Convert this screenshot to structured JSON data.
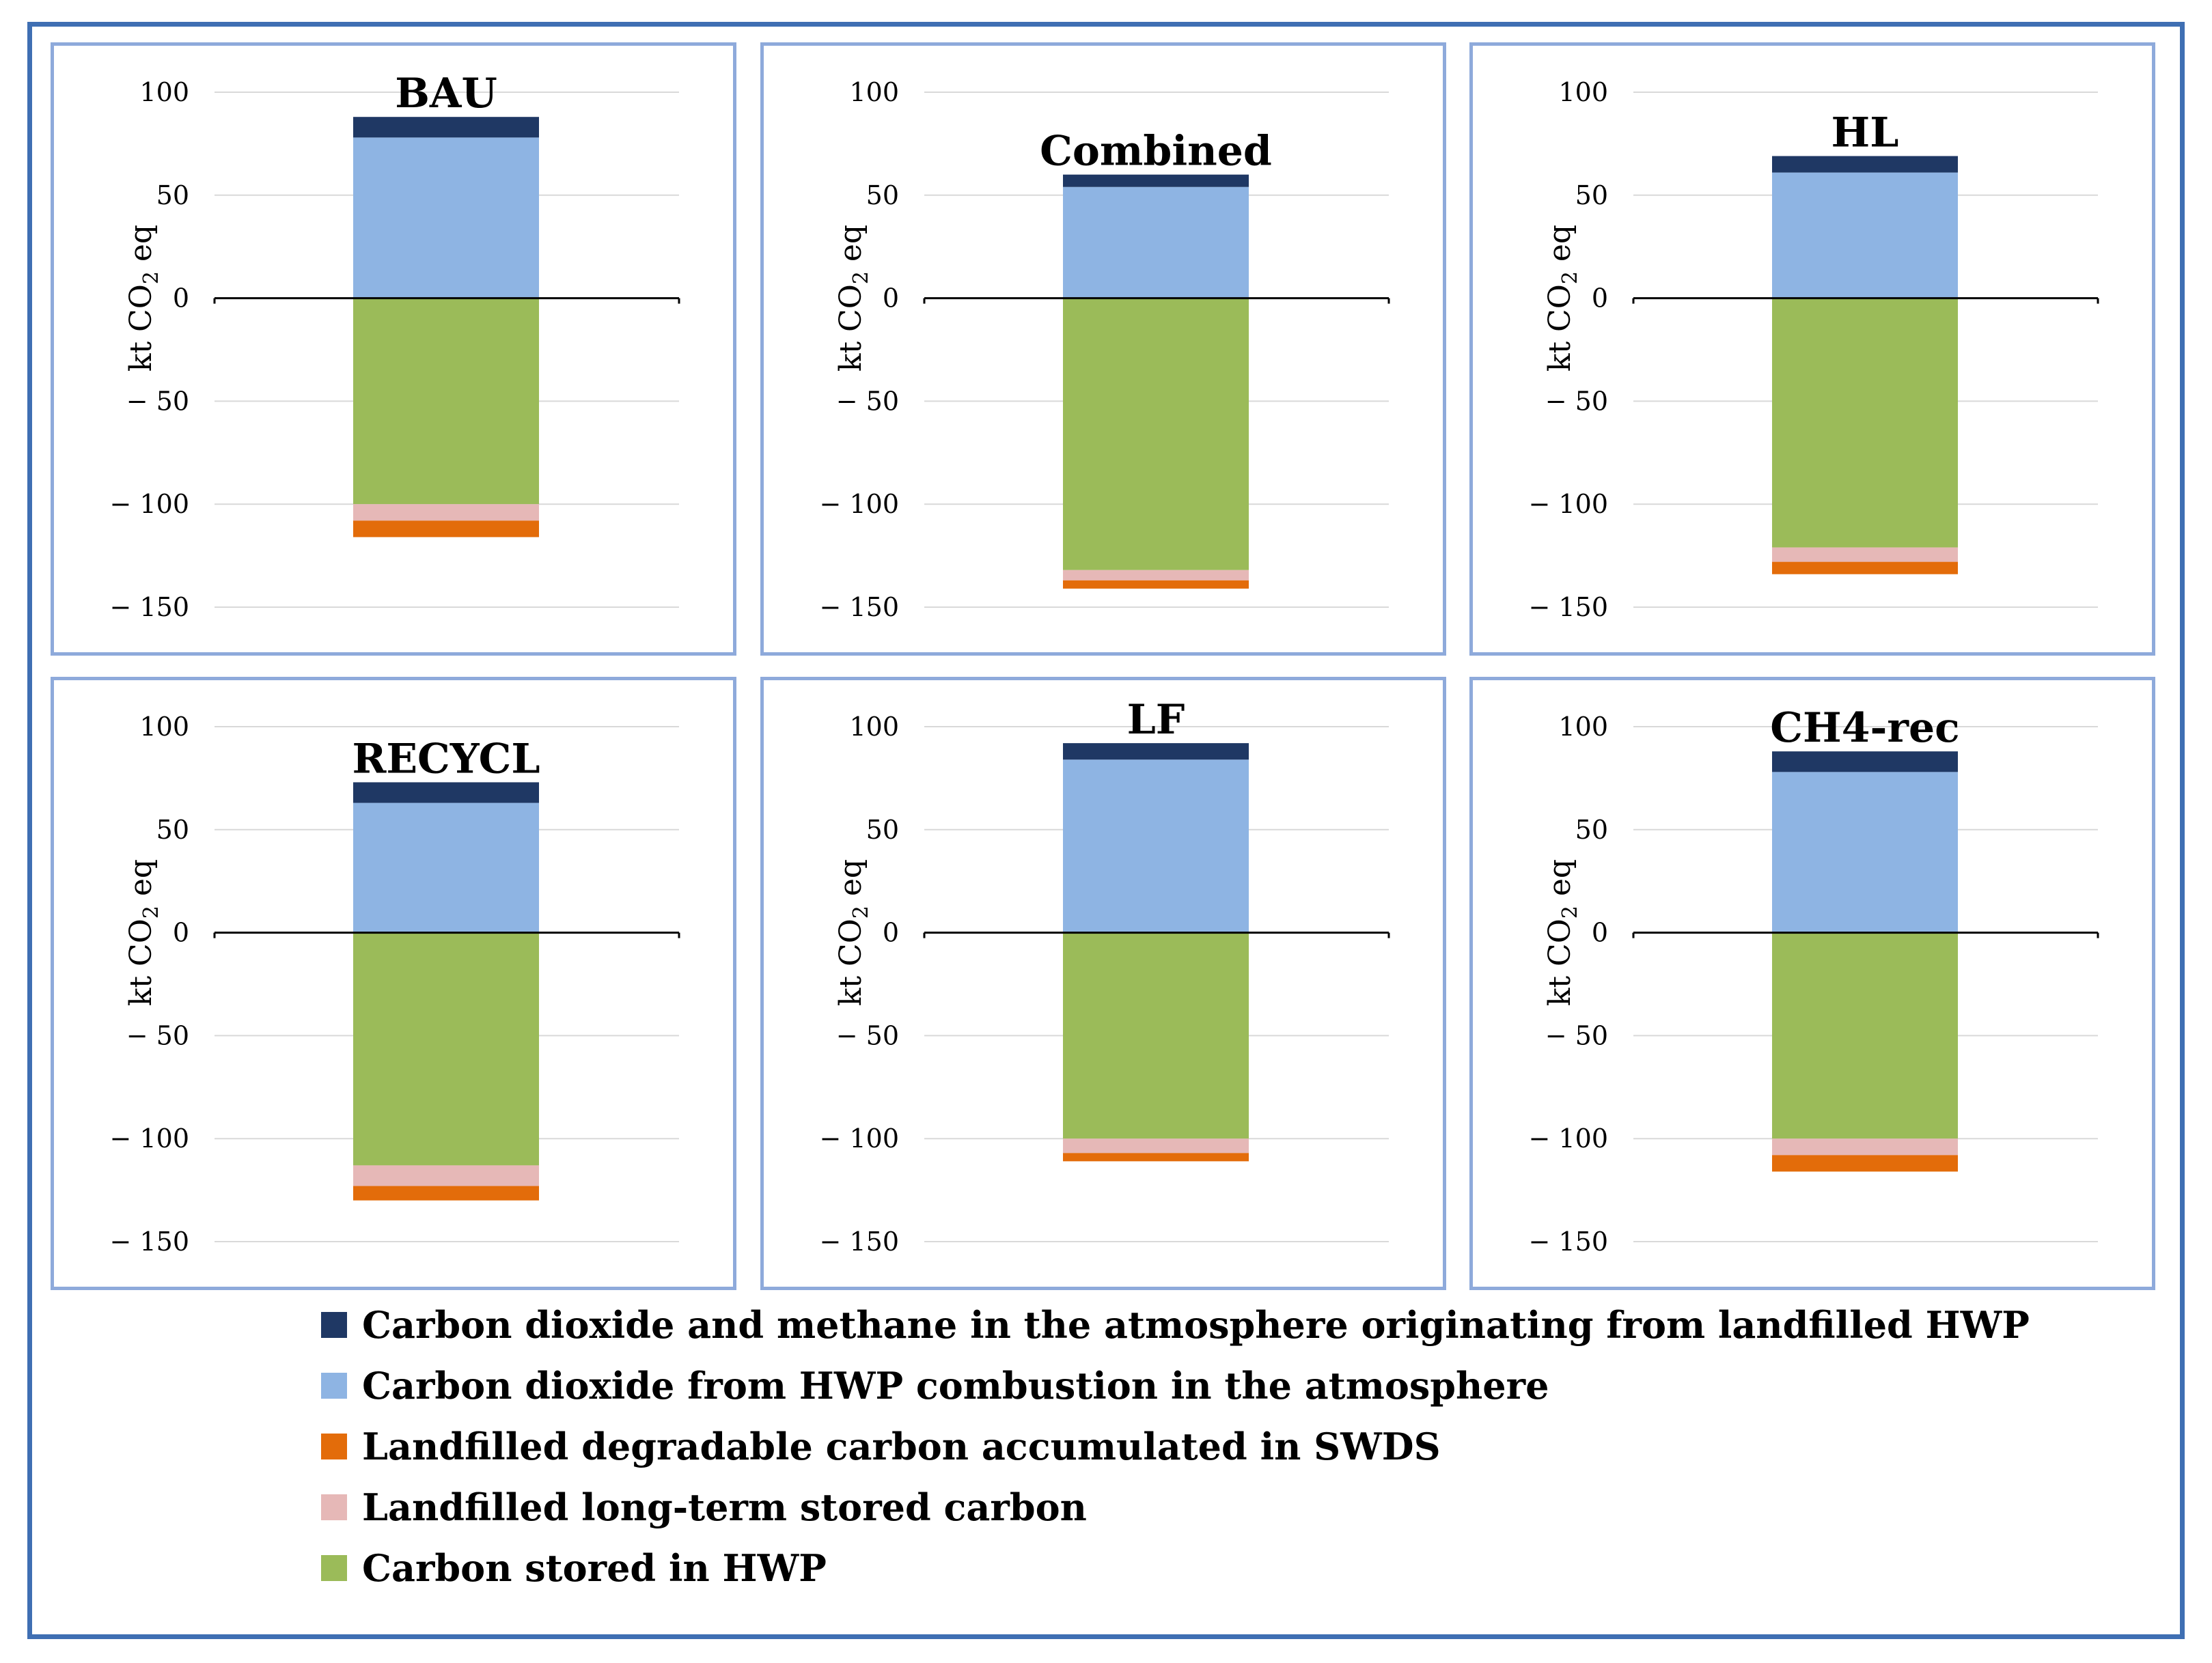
{
  "colors": {
    "atmosphere_landfill": "#1f3864",
    "combustion": "#8eb4e3",
    "swds": "#e36c0a",
    "long_term": "#e6b8b7",
    "hwp": "#9bbb59"
  },
  "legend": [
    {
      "key": "atmosphere_landfill",
      "label": "Carbon dioxide and methane in the atmosphere originating from landfilled HWP"
    },
    {
      "key": "combustion",
      "label": "Carbon dioxide from HWP combustion in the atmosphere"
    },
    {
      "key": "swds",
      "label": "Landfilled degradable carbon accumulated in SWDS"
    },
    {
      "key": "long_term",
      "label": "Landfilled long-term stored carbon"
    },
    {
      "key": "hwp",
      "label": "Carbon stored in HWP"
    }
  ],
  "chart_data": [
    {
      "type": "bar",
      "stacked": true,
      "title": "BAU",
      "ylabel": "kt CO2 eq",
      "ylim": [
        -150,
        100
      ],
      "yticks": [
        "100",
        "50",
        "0",
        "− 50",
        "− 100",
        "− 150"
      ],
      "series": [
        {
          "name": "Carbon dioxide from HWP combustion in the atmosphere",
          "key": "combustion",
          "value": 78
        },
        {
          "name": "Carbon dioxide and methane in the atmosphere originating from landfilled HWP",
          "key": "atmosphere_landfill",
          "value": 10
        },
        {
          "name": "Carbon stored in HWP",
          "key": "hwp",
          "value": -100
        },
        {
          "name": "Landfilled long-term stored carbon",
          "key": "long_term",
          "value": -8
        },
        {
          "name": "Landfilled degradable carbon accumulated in SWDS",
          "key": "swds",
          "value": -8
        }
      ]
    },
    {
      "type": "bar",
      "stacked": true,
      "title": "Combined",
      "ylabel": "kt CO2 eq",
      "ylim": [
        -150,
        100
      ],
      "yticks": [
        "100",
        "50",
        "0",
        "− 50",
        "− 100",
        "− 150"
      ],
      "series": [
        {
          "name": "Carbon dioxide from HWP combustion in the atmosphere",
          "key": "combustion",
          "value": 54
        },
        {
          "name": "Carbon dioxide and methane in the atmosphere originating from landfilled HWP",
          "key": "atmosphere_landfill",
          "value": 6
        },
        {
          "name": "Carbon stored in HWP",
          "key": "hwp",
          "value": -132
        },
        {
          "name": "Landfilled long-term stored carbon",
          "key": "long_term",
          "value": -5
        },
        {
          "name": "Landfilled degradable carbon accumulated in SWDS",
          "key": "swds",
          "value": -4
        }
      ]
    },
    {
      "type": "bar",
      "stacked": true,
      "title": "HL",
      "ylabel": "kt CO2 eq",
      "ylim": [
        -150,
        100
      ],
      "yticks": [
        "100",
        "50",
        "0",
        "− 50",
        "− 100",
        "− 150"
      ],
      "series": [
        {
          "name": "Carbon dioxide from HWP combustion in the atmosphere",
          "key": "combustion",
          "value": 61
        },
        {
          "name": "Carbon dioxide and methane in the atmosphere originating from landfilled HWP",
          "key": "atmosphere_landfill",
          "value": 8
        },
        {
          "name": "Carbon stored in HWP",
          "key": "hwp",
          "value": -121
        },
        {
          "name": "Landfilled long-term stored carbon",
          "key": "long_term",
          "value": -7
        },
        {
          "name": "Landfilled degradable carbon accumulated in SWDS",
          "key": "swds",
          "value": -6
        }
      ]
    },
    {
      "type": "bar",
      "stacked": true,
      "title": "RECYCL",
      "ylabel": "kt CO2 eq",
      "ylim": [
        -150,
        100
      ],
      "yticks": [
        "100",
        "50",
        "0",
        "− 50",
        "− 100",
        "− 150"
      ],
      "series": [
        {
          "name": "Carbon dioxide from HWP combustion in the atmosphere",
          "key": "combustion",
          "value": 63
        },
        {
          "name": "Carbon dioxide and methane in the atmosphere originating from landfilled HWP",
          "key": "atmosphere_landfill",
          "value": 10
        },
        {
          "name": "Carbon stored in HWP",
          "key": "hwp",
          "value": -113
        },
        {
          "name": "Landfilled long-term stored carbon",
          "key": "long_term",
          "value": -10
        },
        {
          "name": "Landfilled degradable carbon accumulated in SWDS",
          "key": "swds",
          "value": -7
        }
      ]
    },
    {
      "type": "bar",
      "stacked": true,
      "title": "LF",
      "ylabel": "kt CO2 eq",
      "ylim": [
        -150,
        100
      ],
      "yticks": [
        "100",
        "50",
        "0",
        "− 50",
        "− 100",
        "− 150"
      ],
      "series": [
        {
          "name": "Carbon dioxide from HWP combustion in the atmosphere",
          "key": "combustion",
          "value": 84
        },
        {
          "name": "Carbon dioxide and methane in the atmosphere originating from landfilled HWP",
          "key": "atmosphere_landfill",
          "value": 8
        },
        {
          "name": "Carbon stored in HWP",
          "key": "hwp",
          "value": -100
        },
        {
          "name": "Landfilled long-term stored carbon",
          "key": "long_term",
          "value": -7
        },
        {
          "name": "Landfilled degradable carbon accumulated in SWDS",
          "key": "swds",
          "value": -4
        }
      ]
    },
    {
      "type": "bar",
      "stacked": true,
      "title": "CH4-rec",
      "ylabel": "kt CO2 eq",
      "ylim": [
        -150,
        100
      ],
      "yticks": [
        "100",
        "50",
        "0",
        "− 50",
        "− 100",
        "− 150"
      ],
      "series": [
        {
          "name": "Carbon dioxide from HWP combustion in the atmosphere",
          "key": "combustion",
          "value": 78
        },
        {
          "name": "Carbon dioxide and methane in the atmosphere originating from landfilled HWP",
          "key": "atmosphere_landfill",
          "value": 10
        },
        {
          "name": "Carbon stored in HWP",
          "key": "hwp",
          "value": -100
        },
        {
          "name": "Landfilled long-term stored carbon",
          "key": "long_term",
          "value": -8
        },
        {
          "name": "Landfilled degradable carbon accumulated in SWDS",
          "key": "swds",
          "value": -8
        }
      ]
    }
  ]
}
